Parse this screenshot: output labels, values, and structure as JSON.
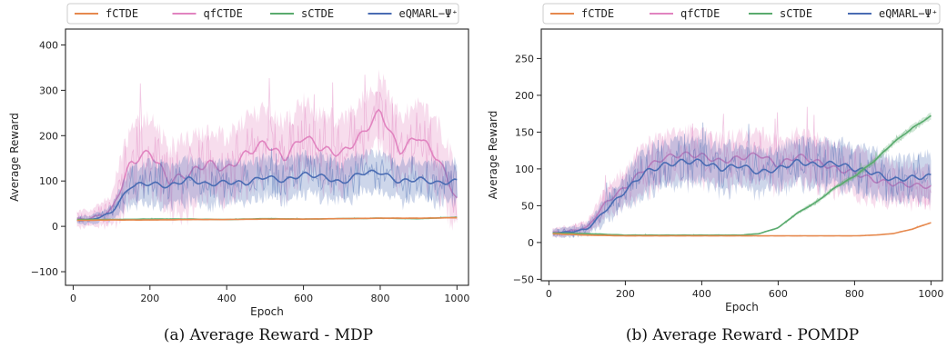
{
  "chart_data": [
    {
      "type": "line",
      "caption": "(a) Average Reward - MDP",
      "xlabel": "Epoch",
      "ylabel": "Average Reward",
      "xlim": [
        -20,
        1030
      ],
      "ylim": [
        -130,
        435
      ],
      "xticks": [
        0,
        200,
        400,
        600,
        800,
        1000
      ],
      "yticks": [
        -100,
        0,
        100,
        200,
        300,
        400
      ],
      "ytick_labels": [
        "−100",
        "0",
        "100",
        "200",
        "300",
        "400"
      ],
      "grid": false,
      "legend": "top",
      "series": [
        {
          "name": "fCTDE",
          "color": "#e6894e",
          "x": [
            0,
            100,
            200,
            300,
            400,
            500,
            600,
            700,
            800,
            900,
            1000
          ],
          "y": [
            13,
            14,
            14,
            15,
            15,
            16,
            16,
            17,
            18,
            18,
            19
          ]
        },
        {
          "name": "qfCTDE",
          "color": "#e184c0",
          "x": [
            0,
            50,
            100,
            150,
            200,
            250,
            300,
            350,
            400,
            450,
            500,
            550,
            600,
            650,
            700,
            750,
            800,
            850,
            900,
            950,
            1000
          ],
          "y": [
            15,
            18,
            35,
            140,
            165,
            100,
            115,
            140,
            125,
            160,
            185,
            150,
            200,
            170,
            160,
            200,
            255,
            165,
            200,
            150,
            60
          ]
        },
        {
          "name": "sCTDE",
          "color": "#5aab6e",
          "x": [
            0,
            100,
            200,
            300,
            400,
            500,
            600,
            700,
            800,
            900,
            1000
          ],
          "y": [
            15,
            15,
            16,
            16,
            15,
            17,
            16,
            17,
            18,
            17,
            20
          ]
        },
        {
          "name": "eQMARL−Ψ⁺",
          "color": "#4a6cb3",
          "x": [
            0,
            50,
            100,
            150,
            200,
            250,
            300,
            350,
            400,
            450,
            500,
            550,
            600,
            650,
            700,
            750,
            800,
            850,
            900,
            950,
            1000
          ],
          "y": [
            13,
            15,
            30,
            90,
            95,
            88,
            105,
            92,
            98,
            95,
            110,
            100,
            115,
            110,
            95,
            118,
            120,
            98,
            105,
            95,
            100
          ]
        }
      ]
    },
    {
      "type": "line",
      "caption": "(b) Average Reward - POMDP",
      "xlabel": "Epoch",
      "ylabel": "Average Reward",
      "xlim": [
        -20,
        1030
      ],
      "ylim": [
        -52,
        290
      ],
      "xticks": [
        0,
        200,
        400,
        600,
        800,
        1000
      ],
      "yticks": [
        -50,
        0,
        50,
        100,
        150,
        200,
        250
      ],
      "ytick_labels": [
        "−50",
        "0",
        "50",
        "100",
        "150",
        "200",
        "250"
      ],
      "grid": false,
      "legend": "top",
      "series": [
        {
          "name": "fCTDE",
          "color": "#e6894e",
          "x": [
            0,
            100,
            200,
            300,
            400,
            500,
            600,
            700,
            800,
            850,
            900,
            950,
            1000
          ],
          "y": [
            12,
            10,
            9,
            9,
            9,
            9,
            9,
            9,
            9,
            10,
            12,
            18,
            27
          ]
        },
        {
          "name": "qfCTDE",
          "color": "#e184c0",
          "x": [
            0,
            50,
            100,
            150,
            200,
            250,
            300,
            350,
            400,
            450,
            500,
            550,
            600,
            650,
            700,
            750,
            800,
            850,
            900,
            950,
            1000
          ],
          "y": [
            13,
            15,
            20,
            55,
            75,
            100,
            115,
            120,
            118,
            110,
            115,
            120,
            105,
            118,
            110,
            100,
            95,
            85,
            80,
            78,
            76
          ]
        },
        {
          "name": "sCTDE",
          "color": "#5aab6e",
          "x": [
            0,
            100,
            200,
            300,
            400,
            500,
            550,
            600,
            650,
            700,
            750,
            800,
            850,
            900,
            950,
            1000
          ],
          "y": [
            13,
            12,
            10,
            10,
            10,
            10,
            12,
            20,
            40,
            55,
            75,
            90,
            110,
            135,
            155,
            172
          ]
        },
        {
          "name": "eQMARL−Ψ⁺",
          "color": "#4a6cb3",
          "x": [
            0,
            50,
            100,
            150,
            200,
            250,
            300,
            350,
            400,
            450,
            500,
            550,
            600,
            650,
            700,
            750,
            800,
            850,
            900,
            950,
            1000
          ],
          "y": [
            13,
            14,
            18,
            45,
            70,
            95,
            105,
            110,
            110,
            100,
            105,
            95,
            100,
            110,
            105,
            108,
            100,
            95,
            85,
            88,
            90
          ]
        }
      ]
    }
  ]
}
